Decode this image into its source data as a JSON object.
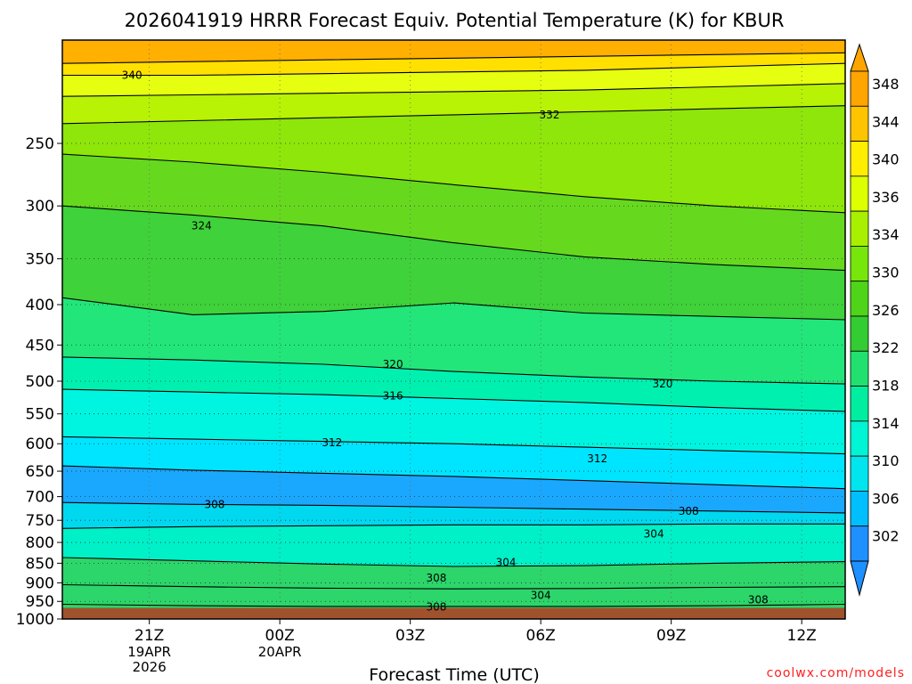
{
  "chart_data": {
    "type": "heatmap",
    "title": "2026041919 HRRR Forecast Equiv. Potential Temperature (K) for KBUR",
    "xlabel": "Forecast Time (UTC)",
    "ylabel": "",
    "y_scale": "log",
    "y_reversed": true,
    "ylim": [
      1000,
      185
    ],
    "grid": true,
    "y_ticks": [
      250,
      300,
      350,
      400,
      450,
      500,
      550,
      600,
      650,
      700,
      750,
      800,
      850,
      900,
      950,
      1000
    ],
    "x_ticks": [
      {
        "hour": 2,
        "label": "21Z",
        "sub1": "19APR",
        "sub2": "2026"
      },
      {
        "hour": 5,
        "label": "00Z",
        "sub1": "20APR",
        "sub2": ""
      },
      {
        "hour": 8,
        "label": "03Z",
        "sub1": "",
        "sub2": ""
      },
      {
        "hour": 11,
        "label": "06Z",
        "sub1": "",
        "sub2": ""
      },
      {
        "hour": 14,
        "label": "09Z",
        "sub1": "",
        "sub2": ""
      },
      {
        "hour": 17,
        "label": "12Z",
        "sub1": "",
        "sub2": ""
      }
    ],
    "xlim_hours": [
      0,
      18
    ],
    "surface_pressure_hpa": 968,
    "colorbar": {
      "levels": [
        302,
        306,
        310,
        314,
        318,
        322,
        326,
        330,
        334,
        336,
        340,
        344,
        348
      ],
      "labels": [
        "348",
        "344",
        "340",
        "336",
        "334",
        "330",
        "326",
        "322",
        "318",
        "314",
        "310",
        "306",
        "302"
      ],
      "colors": [
        "#1e90ff",
        "#00bfff",
        "#00e5ee",
        "#00f5d4",
        "#00eea0",
        "#22e070",
        "#33cc33",
        "#4fd41a",
        "#77e60a",
        "#a8f000",
        "#ddff00",
        "#ffee00",
        "#ffc400",
        "#ffa500"
      ]
    },
    "contours": [
      {
        "value": 344,
        "label": "",
        "p": [
          198,
          197,
          196,
          195,
          194,
          193,
          192
        ]
      },
      {
        "value": 340,
        "label": "340",
        "p": [
          205,
          205,
          204,
          203,
          202,
          200,
          198
        ]
      },
      {
        "value": 336,
        "label": "",
        "p": [
          218,
          217,
          216,
          215,
          214,
          212,
          210
        ]
      },
      {
        "value": 332,
        "label": "332",
        "p": [
          236,
          234,
          232,
          230,
          228,
          226,
          224
        ]
      },
      {
        "value": 328,
        "label": "",
        "p": [
          258,
          264,
          272,
          282,
          292,
          300,
          306
        ]
      },
      {
        "value": 324,
        "label": "324",
        "p": [
          300,
          308,
          318,
          334,
          348,
          356,
          362
        ]
      },
      {
        "value": 322,
        "label": "",
        "p": [
          392,
          412,
          408,
          398,
          410,
          414,
          418
        ]
      },
      {
        "value": 320,
        "label": "320",
        "p": [
          466,
          470,
          476,
          486,
          494,
          500,
          504
        ]
      },
      {
        "value": 316,
        "label": "316",
        "p": [
          512,
          516,
          520,
          526,
          532,
          540,
          546
        ]
      },
      {
        "value": 312,
        "label": "312",
        "p": [
          588,
          592,
          596,
          600,
          606,
          612,
          618
        ]
      },
      {
        "value": 310,
        "label": "",
        "p": [
          640,
          648,
          654,
          660,
          668,
          676,
          684
        ]
      },
      {
        "value": 308,
        "label": "308",
        "p": [
          712,
          716,
          718,
          722,
          726,
          730,
          734
        ]
      },
      {
        "value": 306,
        "label": "",
        "p": [
          768,
          764,
          762,
          760,
          760,
          758,
          758
        ]
      },
      {
        "value": 304,
        "label": "304",
        "p": [
          836,
          844,
          852,
          858,
          856,
          850,
          846
        ]
      },
      {
        "value": 308,
        "label": "308",
        "p": [
          905,
          910,
          914,
          916,
          915,
          912,
          910
        ]
      },
      {
        "value": 308,
        "label": "308",
        "p": [
          958,
          962,
          964,
          964,
          964,
          962,
          958
        ]
      }
    ],
    "inline_labels": [
      {
        "text": "340",
        "hour": 1.6,
        "p": 205
      },
      {
        "text": "332",
        "hour": 11.2,
        "p": 230
      },
      {
        "text": "324",
        "hour": 3.2,
        "p": 318
      },
      {
        "text": "320",
        "hour": 7.6,
        "p": 476
      },
      {
        "text": "320",
        "hour": 13.8,
        "p": 504
      },
      {
        "text": "316",
        "hour": 7.6,
        "p": 522
      },
      {
        "text": "312",
        "hour": 6.2,
        "p": 598
      },
      {
        "text": "312",
        "hour": 12.3,
        "p": 627
      },
      {
        "text": "308",
        "hour": 3.5,
        "p": 716
      },
      {
        "text": "308",
        "hour": 14.4,
        "p": 730
      },
      {
        "text": "304",
        "hour": 13.6,
        "p": 780
      },
      {
        "text": "304",
        "hour": 10.2,
        "p": 848
      },
      {
        "text": "308",
        "hour": 8.6,
        "p": 888
      },
      {
        "text": "304",
        "hour": 11.0,
        "p": 934
      },
      {
        "text": "308",
        "hour": 8.6,
        "p": 966
      },
      {
        "text": "308",
        "hour": 16.0,
        "p": 946
      }
    ]
  },
  "credit": "coolwx.com/models"
}
